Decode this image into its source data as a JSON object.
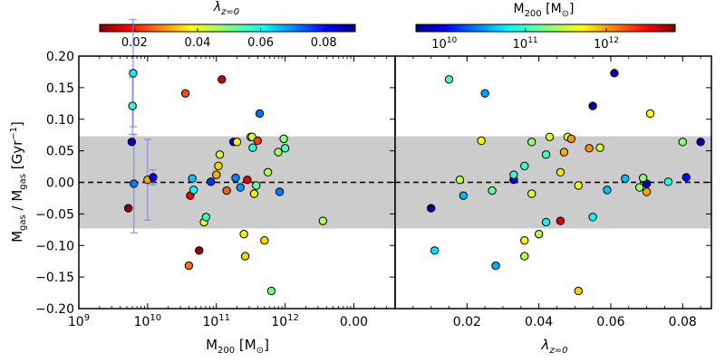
{
  "colorbars": {
    "left": {
      "label": "λ",
      "label_sub": "z=0",
      "ticks": [
        "0.02",
        "0.04",
        "0.06",
        "0.08"
      ],
      "tick_values": [
        0.02,
        0.04,
        0.06,
        0.08
      ],
      "range": [
        0.009,
        0.09
      ],
      "colormap": "jet_r"
    },
    "right": {
      "label": "M",
      "label_sub": "200",
      "label_unit": " [M",
      "label_unit_sub": "⊙",
      "label_close": "]",
      "ticks": [
        {
          "base": "10",
          "exp": "10",
          "value": 10
        },
        {
          "base": "10",
          "exp": "11",
          "value": 11
        },
        {
          "base": "10",
          "exp": "12",
          "value": 12
        }
      ],
      "range": [
        9.65,
        12.85
      ],
      "colormap": "jet"
    }
  },
  "axes": {
    "ylabel": {
      "prefix": "M",
      "prefix_sub": "gas",
      "middle": " / M",
      "middle_sub": "gas",
      "unit": " [Gyr",
      "unit_sup": "−1",
      "close": "]"
    },
    "y_ticks": [
      "0.20",
      "0.15",
      "0.10",
      "0.05",
      "0.00",
      "−0.05",
      "−0.10",
      "−0.15",
      "−0.20"
    ],
    "y_tick_values": [
      0.2,
      0.15,
      0.1,
      0.05,
      0.0,
      -0.05,
      -0.1,
      -0.15,
      -0.2
    ],
    "left_xlabel": {
      "main": "M",
      "sub": "200",
      "unit": " [M",
      "unit_sub": "⊙",
      "close": "]"
    },
    "left_x_ticks": [
      {
        "base": "10",
        "exp": "9",
        "value": 9
      },
      {
        "base": "10",
        "exp": "10",
        "value": 10
      },
      {
        "base": "10",
        "exp": "11",
        "value": 11
      },
      {
        "base": "10",
        "exp": "12",
        "value": 12
      },
      {
        "text": "0.00",
        "value": 13
      }
    ],
    "right_xlabel": {
      "main": "λ",
      "sub": "z=0"
    },
    "right_x_ticks": [
      "0.00",
      "0.02",
      "0.04",
      "0.06",
      "0.08"
    ],
    "right_x_tick_values": [
      0.0,
      0.02,
      0.04,
      0.06,
      0.08
    ]
  },
  "chart_data": {
    "type": "scatter",
    "ylim": [
      -0.2,
      0.2
    ],
    "shaded_band": [
      -0.073,
      0.073
    ],
    "zero_line": 0.0,
    "panels": [
      {
        "name": "left",
        "xscale": "log",
        "xlim_log10": [
          9.0,
          13.6
        ],
        "x_field": "log10_M200",
        "color_field": "lambda",
        "error_bar_color": "#7f7fef"
      },
      {
        "name": "right",
        "xscale": "linear",
        "xlim": [
          0.0,
          0.088
        ],
        "x_field": "lambda",
        "color_field": "log10_M200"
      }
    ],
    "points": [
      {
        "log10_M200": 9.72,
        "lambda": 0.01,
        "y": -0.041
      },
      {
        "log10_M200": 9.77,
        "lambda": 0.085,
        "y": 0.064
      },
      {
        "log10_M200": 9.79,
        "lambda": 0.061,
        "y": 0.173,
        "yerr": 0.085
      },
      {
        "log10_M200": 9.78,
        "lambda": 0.055,
        "y": 0.121,
        "yerr": 0.045
      },
      {
        "log10_M200": 9.8,
        "lambda": 0.07,
        "y": -0.002,
        "yerr": 0.078
      },
      {
        "log10_M200": 10.0,
        "lambda": 0.033,
        "y": 0.004,
        "yerr": 0.064
      },
      {
        "log10_M200": 10.08,
        "lambda": 0.081,
        "y": 0.008,
        "yerr": 0.012
      },
      {
        "log10_M200": 10.55,
        "lambda": 0.025,
        "y": 0.141
      },
      {
        "log10_M200": 10.6,
        "lambda": 0.028,
        "y": -0.132
      },
      {
        "log10_M200": 10.62,
        "lambda": 0.019,
        "y": -0.021
      },
      {
        "log10_M200": 10.65,
        "lambda": 0.064,
        "y": 0.006
      },
      {
        "log10_M200": 10.67,
        "lambda": 0.059,
        "y": -0.012
      },
      {
        "log10_M200": 10.75,
        "lambda": 0.011,
        "y": -0.108
      },
      {
        "log10_M200": 10.82,
        "lambda": 0.042,
        "y": -0.063
      },
      {
        "log10_M200": 10.85,
        "lambda": 0.055,
        "y": -0.055
      },
      {
        "log10_M200": 10.92,
        "lambda": 0.076,
        "y": 0.001
      },
      {
        "log10_M200": 11.0,
        "lambda": 0.033,
        "y": 0.012
      },
      {
        "log10_M200": 11.03,
        "lambda": 0.036,
        "y": 0.026
      },
      {
        "log10_M200": 11.05,
        "lambda": 0.042,
        "y": 0.044
      },
      {
        "log10_M200": 11.08,
        "lambda": 0.015,
        "y": 0.163
      },
      {
        "log10_M200": 11.15,
        "lambda": 0.027,
        "y": -0.013
      },
      {
        "log10_M200": 11.25,
        "lambda": 0.08,
        "y": 0.064
      },
      {
        "log10_M200": 11.28,
        "lambda": 0.069,
        "y": 0.007
      },
      {
        "log10_M200": 11.35,
        "lambda": 0.068,
        "y": -0.008
      },
      {
        "log10_M200": 11.4,
        "lambda": 0.04,
        "y": -0.082
      },
      {
        "log10_M200": 11.42,
        "lambda": 0.036,
        "y": -0.117
      },
      {
        "log10_M200": 11.45,
        "lambda": 0.018,
        "y": 0.004
      },
      {
        "log10_M200": 11.5,
        "lambda": 0.048,
        "y": 0.072
      },
      {
        "log10_M200": 11.52,
        "lambda": 0.043,
        "y": 0.072
      },
      {
        "log10_M200": 11.53,
        "lambda": 0.057,
        "y": 0.055
      },
      {
        "log10_M200": 11.55,
        "lambda": 0.038,
        "y": -0.018
      },
      {
        "log10_M200": 11.58,
        "lambda": 0.051,
        "y": -0.005
      },
      {
        "log10_M200": 11.63,
        "lambda": 0.071,
        "y": 0.109
      },
      {
        "log10_M200": 11.7,
        "lambda": 0.036,
        "y": -0.092
      },
      {
        "log10_M200": 11.75,
        "lambda": 0.046,
        "y": 0.016
      },
      {
        "log10_M200": 11.8,
        "lambda": 0.051,
        "y": -0.172
      },
      {
        "log10_M200": 11.6,
        "lambda": 0.024,
        "y": 0.066
      },
      {
        "log10_M200": 11.3,
        "lambda": 0.038,
        "y": 0.064
      },
      {
        "log10_M200": 11.9,
        "lambda": 0.047,
        "y": 0.048
      },
      {
        "log10_M200": 11.92,
        "lambda": 0.07,
        "y": -0.015
      },
      {
        "log10_M200": 11.98,
        "lambda": 0.049,
        "y": 0.069
      },
      {
        "log10_M200": 12.0,
        "lambda": 0.054,
        "y": 0.054
      },
      {
        "log10_M200": 12.55,
        "lambda": 0.046,
        "y": -0.061
      }
    ]
  }
}
